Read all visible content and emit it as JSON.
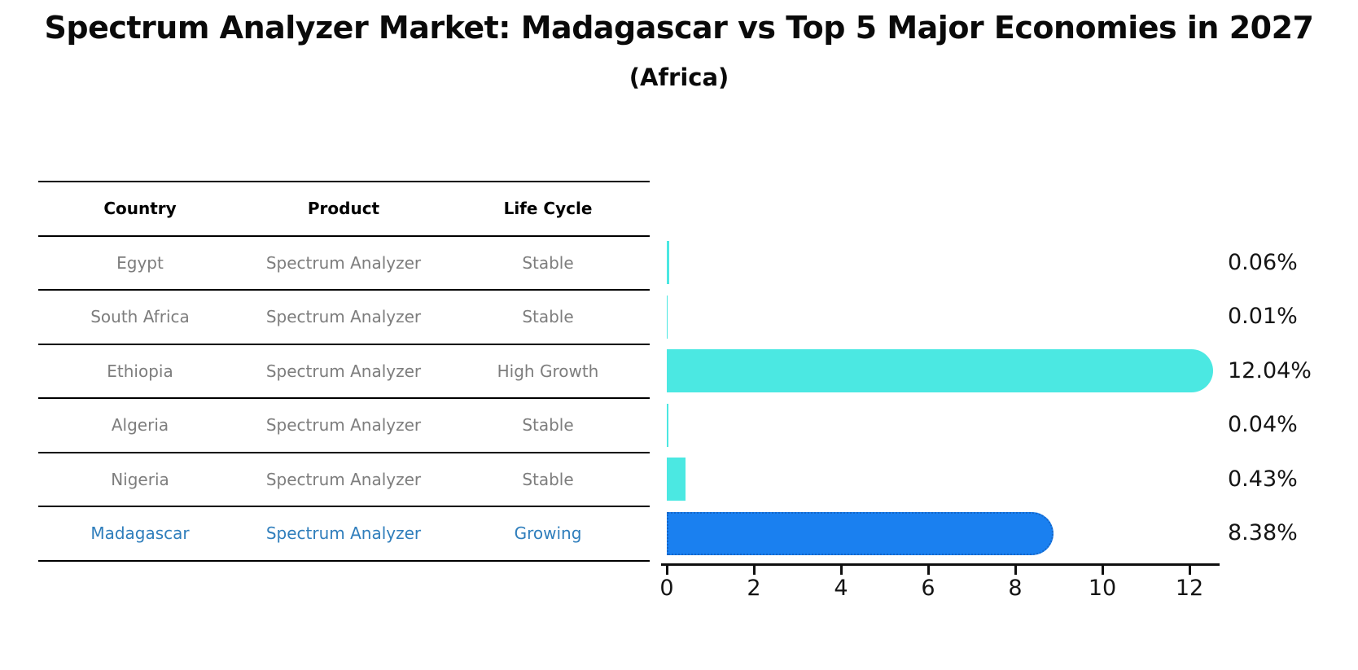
{
  "title": "Spectrum Analyzer Market: Madagascar vs Top 5 Major Economies in 2027",
  "subtitle": "(Africa)",
  "table": {
    "headers": [
      "Country",
      "Product",
      "Life Cycle"
    ],
    "rows": [
      {
        "country": "Egypt",
        "product": "Spectrum Analyzer",
        "life_cycle": "Stable",
        "highlighted": false
      },
      {
        "country": "South Africa",
        "product": "Spectrum Analyzer",
        "life_cycle": "Stable",
        "highlighted": false
      },
      {
        "country": "Ethiopia",
        "product": "Spectrum Analyzer",
        "life_cycle": "High Growth",
        "highlighted": false
      },
      {
        "country": "Algeria",
        "product": "Spectrum Analyzer",
        "life_cycle": "Stable",
        "highlighted": false
      },
      {
        "country": "Nigeria",
        "product": "Spectrum Analyzer",
        "life_cycle": "Stable",
        "highlighted": false
      },
      {
        "country": "Madagascar",
        "product": "Spectrum Analyzer",
        "life_cycle": "Growing",
        "highlighted": true
      }
    ]
  },
  "chart_data": {
    "type": "bar",
    "orientation": "horizontal",
    "title": "Spectrum Analyzer Market: Madagascar vs Top 5 Major Economies in 2027",
    "subtitle": "(Africa)",
    "categories": [
      "Egypt",
      "South Africa",
      "Ethiopia",
      "Algeria",
      "Nigeria",
      "Madagascar"
    ],
    "values": [
      0.06,
      0.01,
      12.04,
      0.04,
      0.43,
      8.38
    ],
    "value_labels": [
      "0.06%",
      "0.01%",
      "12.04%",
      "0.04%",
      "0.43%",
      "8.38%"
    ],
    "x_ticks": [
      "0",
      "2",
      "4",
      "6",
      "8",
      "10",
      "12"
    ],
    "xlim": [
      0,
      12.7
    ],
    "grid": false,
    "legend": false,
    "highlight_index": 5,
    "bar_color": "#4BE8E2",
    "highlight_bar_color": "#1A80F0",
    "highlight_border_color": "#1566C8"
  },
  "colors": {
    "background": "#FFFFFF",
    "header_text": "#000000",
    "row_text": "#7D7D7D",
    "highlight_text": "#2F7EBC",
    "table_line": "#000000",
    "axis": "#0F0F0F",
    "value_label_text": "#141414"
  }
}
